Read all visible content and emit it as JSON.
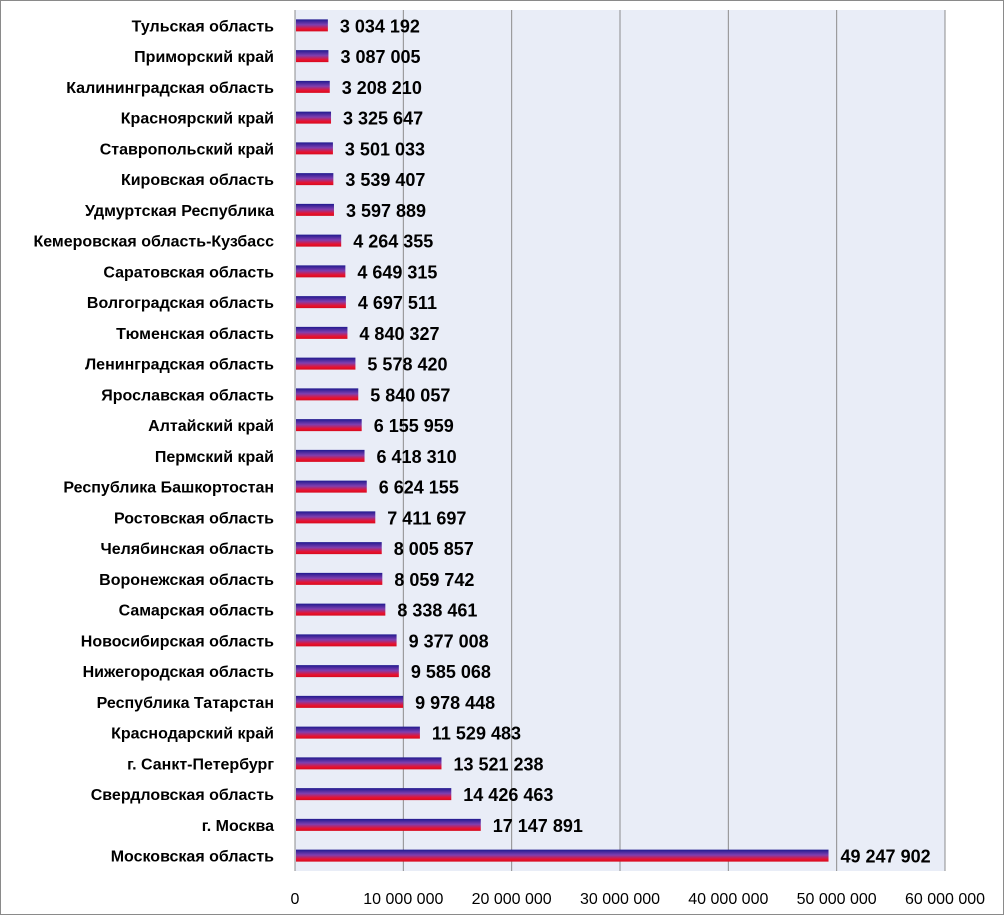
{
  "chart_data": {
    "type": "bar",
    "orientation": "horizontal",
    "title": "",
    "xlabel": "",
    "ylabel": "",
    "categories": [
      "Тульская область",
      "Приморский край",
      "Калининградская область",
      "Красноярский край",
      "Ставропольский край",
      "Кировская область",
      "Удмуртская Республика",
      "Кемеровская область-Кузбасс",
      "Саратовская область",
      "Волгоградская область",
      "Тюменская область",
      "Ленинградская область",
      "Ярославская область",
      "Алтайский край",
      "Пермский край",
      "Республика Башкортостан",
      "Ростовская область",
      "Челябинская область",
      "Воронежская область",
      "Самарская область",
      "Новосибирская область",
      "Нижегородская область",
      "Республика Татарстан",
      "Краснодарский край",
      "г. Санкт-Петербург",
      "Свердловская область",
      "г. Москва",
      "Московская область"
    ],
    "values": [
      3034192,
      3087005,
      3208210,
      3325647,
      3501033,
      3539407,
      3597889,
      4264355,
      4649315,
      4697511,
      4840327,
      5578420,
      5840057,
      6155959,
      6418310,
      6624155,
      7411697,
      8005857,
      8059742,
      8338461,
      9377008,
      9585068,
      9978448,
      11529483,
      13521238,
      14426463,
      17147891,
      49247902
    ],
    "value_labels": [
      "3 034 192",
      "3 087 005",
      "3 208 210",
      "3 325 647",
      "3 501 033",
      "3 539 407",
      "3 597 889",
      "4 264 355",
      "4 649 315",
      "4 697 511",
      "4 840 327",
      "5 578 420",
      "5 840 057",
      "6 155 959",
      "6 418 310",
      "6 624 155",
      "7 411 697",
      "8 005 857",
      "8 059 742",
      "8 338 461",
      "9 377 008",
      "9 585 068",
      "9 978 448",
      "11 529 483",
      "13 521 238",
      "14 426 463",
      "17 147 891",
      "49 247 902"
    ],
    "xlim": [
      0,
      60000000
    ],
    "x_ticks": [
      0,
      10000000,
      20000000,
      30000000,
      40000000,
      50000000,
      60000000
    ],
    "x_tick_labels": [
      "0",
      "10 000 000",
      "20 000 000",
      "30 000 000",
      "40 000 000",
      "50 000 000",
      "60 000 000"
    ],
    "grid": true,
    "legend": "none",
    "colors": {
      "plot_background": "#e9edf7",
      "gridline": "#8c8c8c",
      "bar_gradient": [
        "#1f1a8f",
        "#7f3fb0",
        "#e8122f",
        "#d60a1e"
      ]
    }
  }
}
